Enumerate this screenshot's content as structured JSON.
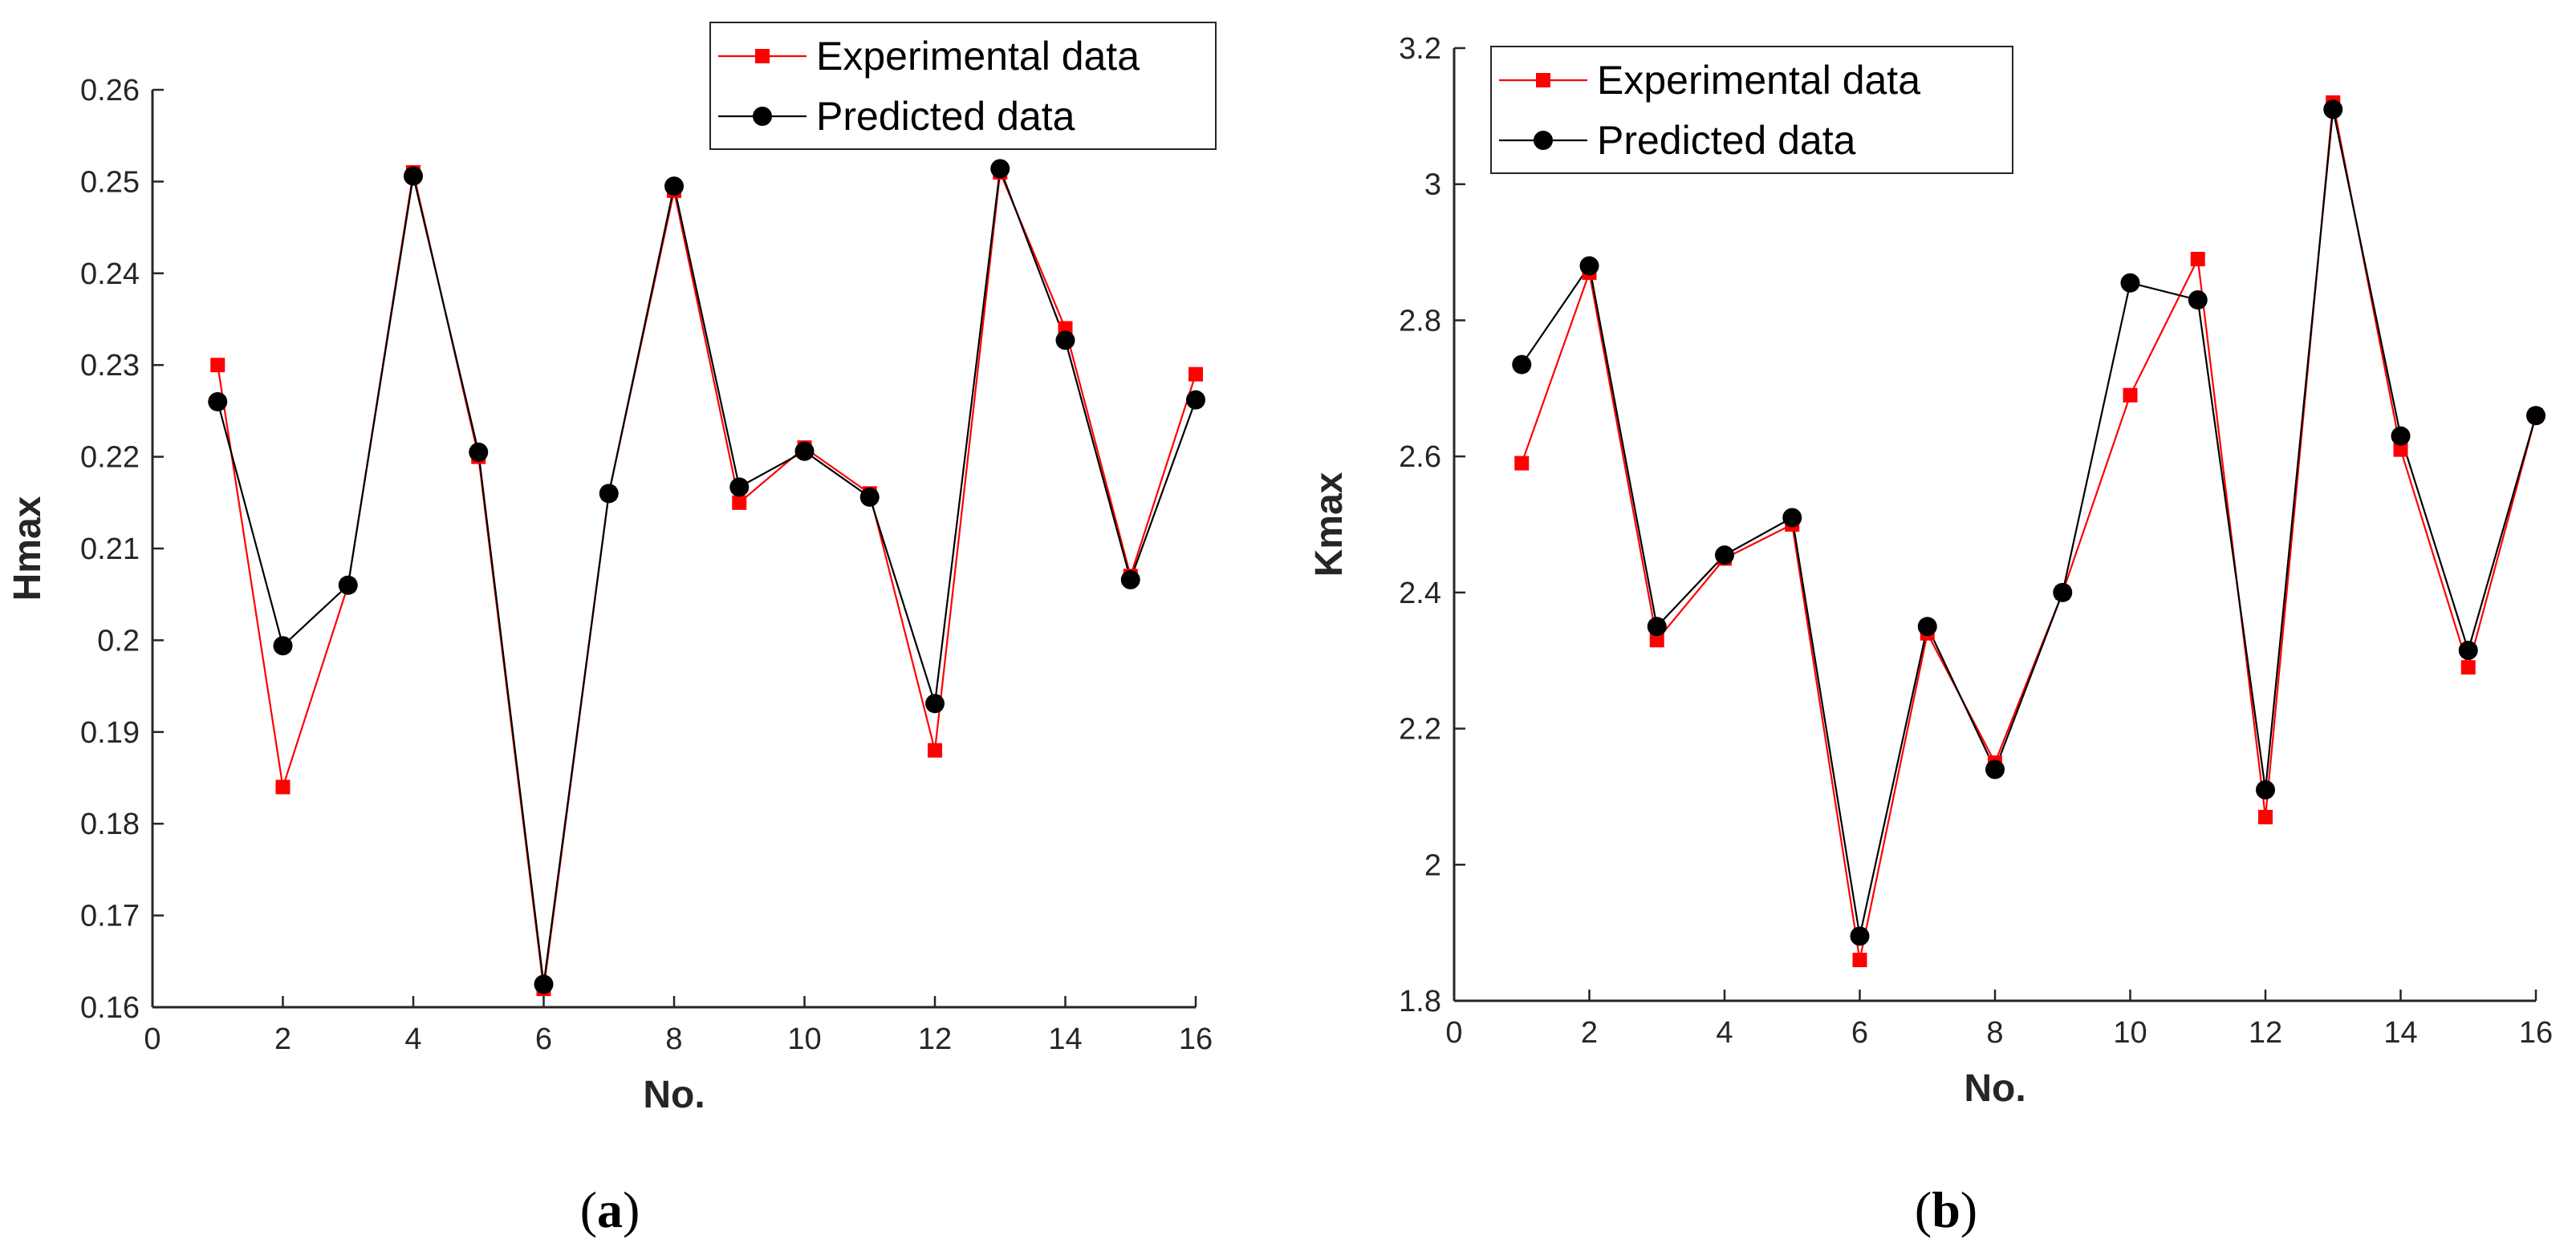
{
  "colors": {
    "experimental": "#ff0000",
    "predicted": "#000000",
    "axis": "#262626"
  },
  "chart_data": [
    {
      "type": "line",
      "panel_label_open": "(",
      "panel_label_letter": "a",
      "panel_label_close": ")",
      "xlabel": "No.",
      "ylabel": "Hmax",
      "xlim": [
        0,
        16
      ],
      "ylim": [
        0.16,
        0.26
      ],
      "x_ticks": [
        0,
        2,
        4,
        6,
        8,
        10,
        12,
        14,
        16
      ],
      "x_tick_labels": [
        "0",
        "2",
        "4",
        "6",
        "8",
        "10",
        "12",
        "14",
        "16"
      ],
      "y_ticks": [
        0.16,
        0.17,
        0.18,
        0.19,
        0.2,
        0.21,
        0.22,
        0.23,
        0.24,
        0.25,
        0.26
      ],
      "y_tick_labels": [
        "0.16",
        "0.17",
        "0.18",
        "0.19",
        "0.2",
        "0.21",
        "0.22",
        "0.23",
        "0.24",
        "0.25",
        "0.26"
      ],
      "grid": false,
      "legend_position": "top-right",
      "x": [
        1,
        2,
        3,
        4,
        5,
        6,
        7,
        8,
        9,
        10,
        11,
        12,
        13,
        14,
        15,
        16
      ],
      "series": [
        {
          "name": "Experimental data",
          "marker": "square",
          "color": "#ff0000",
          "values": [
            0.23,
            0.184,
            0.206,
            0.251,
            0.22,
            0.162,
            0.216,
            0.249,
            0.215,
            0.221,
            0.216,
            0.188,
            0.251,
            0.234,
            0.207,
            0.229
          ]
        },
        {
          "name": "Predicted data",
          "marker": "circle",
          "color": "#000000",
          "values": [
            0.226,
            0.1994,
            0.206,
            0.2506,
            0.2205,
            0.1625,
            0.216,
            0.2495,
            0.2167,
            0.2206,
            0.2156,
            0.1931,
            0.2514,
            0.2327,
            0.2066,
            0.2262
          ]
        }
      ]
    },
    {
      "type": "line",
      "panel_label_open": "(",
      "panel_label_letter": "b",
      "panel_label_close": ")",
      "xlabel": "No.",
      "ylabel": "Kmax",
      "xlim": [
        0,
        16
      ],
      "ylim": [
        1.8,
        3.2
      ],
      "x_ticks": [
        0,
        2,
        4,
        6,
        8,
        10,
        12,
        14,
        16
      ],
      "x_tick_labels": [
        "0",
        "2",
        "4",
        "6",
        "8",
        "10",
        "12",
        "14",
        "16"
      ],
      "y_ticks": [
        1.8,
        2.0,
        2.2,
        2.4,
        2.6,
        2.8,
        3.0,
        3.2
      ],
      "y_tick_labels": [
        "1.8",
        "2",
        "2.2",
        "2.4",
        "2.6",
        "2.8",
        "3",
        "3.2"
      ],
      "grid": false,
      "legend_position": "top-left",
      "x": [
        1,
        2,
        3,
        4,
        5,
        6,
        7,
        8,
        9,
        10,
        11,
        12,
        13,
        14,
        15,
        16
      ],
      "series": [
        {
          "name": "Experimental data",
          "marker": "square",
          "color": "#ff0000",
          "values": [
            2.59,
            2.87,
            2.33,
            2.45,
            2.5,
            1.86,
            2.34,
            2.15,
            2.4,
            2.69,
            2.89,
            2.07,
            3.12,
            2.61,
            2.29,
            2.66
          ]
        },
        {
          "name": "Predicted data",
          "marker": "circle",
          "color": "#000000",
          "values": [
            2.735,
            2.88,
            2.35,
            2.455,
            2.51,
            1.895,
            2.35,
            2.14,
            2.4,
            2.855,
            2.83,
            2.11,
            3.11,
            2.63,
            2.315,
            2.66
          ]
        }
      ]
    }
  ]
}
